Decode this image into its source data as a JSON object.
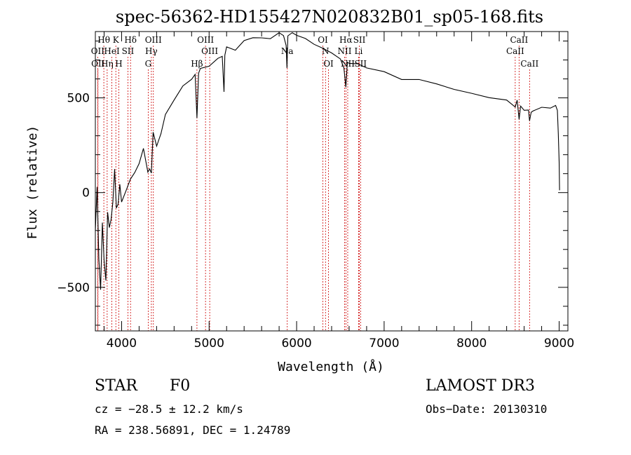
{
  "chart_data": {
    "type": "line",
    "title": "spec-56362-HD155427N020832B01_sp05-168.fits",
    "xlabel": "Wavelength (Å)",
    "ylabel": "Flux (relative)",
    "xlim": [
      3700,
      9100
    ],
    "ylim": [
      -730,
      850
    ],
    "xticks": [
      4000,
      5000,
      6000,
      7000,
      8000,
      9000
    ],
    "yticks": [
      -500,
      0,
      500
    ],
    "grid": false,
    "series": [
      {
        "name": "flux",
        "x": [
          3700,
          3720,
          3740,
          3760,
          3780,
          3800,
          3820,
          3840,
          3860,
          3880,
          3900,
          3920,
          3940,
          3960,
          3980,
          4000,
          4050,
          4100,
          4150,
          4200,
          4250,
          4300,
          4320,
          4340,
          4360,
          4400,
          4450,
          4500,
          4600,
          4700,
          4800,
          4840,
          4861,
          4880,
          4900,
          5000,
          5100,
          5150,
          5170,
          5180,
          5200,
          5300,
          5400,
          5500,
          5600,
          5700,
          5800,
          5850,
          5880,
          5890,
          5896,
          5900,
          5950,
          6000,
          6100,
          6200,
          6300,
          6400,
          6500,
          6540,
          6563,
          6580,
          6600,
          6700,
          6800,
          7000,
          7200,
          7400,
          7600,
          7800,
          8000,
          8200,
          8400,
          8498,
          8520,
          8542,
          8560,
          8600,
          8650,
          8662,
          8680,
          8700,
          8800,
          8900,
          8960,
          8980,
          8990,
          9000,
          9005
        ],
        "y": [
          -200,
          50,
          -350,
          -500,
          -150,
          -350,
          -450,
          -100,
          -200,
          -150,
          -50,
          120,
          -100,
          -60,
          40,
          -40,
          30,
          80,
          120,
          160,
          250,
          120,
          140,
          90,
          300,
          230,
          300,
          390,
          470,
          550,
          620,
          640,
          400,
          640,
          660,
          680,
          730,
          740,
          520,
          720,
          760,
          750,
          790,
          800,
          810,
          830,
          850,
          840,
          780,
          660,
          770,
          830,
          840,
          820,
          800,
          780,
          750,
          720,
          690,
          640,
          560,
          690,
          700,
          680,
          660,
          640,
          610,
          580,
          560,
          530,
          510,
          490,
          470,
          430,
          470,
          400,
          460,
          450,
          440,
          380,
          440,
          440,
          430,
          430,
          440,
          420,
          300,
          150,
          0
        ]
      }
    ],
    "spectral_lines": [
      {
        "label": "Hθ",
        "x": 3797,
        "row": 1
      },
      {
        "label": "OII",
        "x": 3727,
        "row": 2
      },
      {
        "label": "OII",
        "x": 3730,
        "row": 3
      },
      {
        "label": "K",
        "x": 3934,
        "row": 1
      },
      {
        "label": "HeI",
        "x": 3889,
        "row": 2
      },
      {
        "label": "Hη",
        "x": 3835,
        "row": 3
      },
      {
        "label": "H",
        "x": 3968,
        "row": 3
      },
      {
        "label": "Hδ",
        "x": 4102,
        "row": 1
      },
      {
        "label": "SII",
        "x": 4072,
        "row": 2
      },
      {
        "label": "OIII",
        "x": 4363,
        "row": 1
      },
      {
        "label": "Hγ",
        "x": 4340,
        "row": 2
      },
      {
        "label": "G",
        "x": 4304,
        "row": 3
      },
      {
        "label": "OIII",
        "x": 4959,
        "row": 1
      },
      {
        "label": "OIII",
        "x": 5007,
        "row": 2
      },
      {
        "label": "Hβ",
        "x": 4861,
        "row": 3
      },
      {
        "label": "Na",
        "x": 5893,
        "row": 2
      },
      {
        "label": "OI",
        "x": 6300,
        "row": 1
      },
      {
        "label": "N",
        "x": 6330,
        "row": 2
      },
      {
        "label": "OI",
        "x": 6364,
        "row": 3
      },
      {
        "label": "Hα",
        "x": 6563,
        "row": 1
      },
      {
        "label": "SII",
        "x": 6717,
        "row": 1
      },
      {
        "label": "NII",
        "x": 6548,
        "row": 2
      },
      {
        "label": "Li",
        "x": 6708,
        "row": 2
      },
      {
        "label": "NII",
        "x": 6584,
        "row": 3
      },
      {
        "label": "SII",
        "x": 6731,
        "row": 3
      },
      {
        "label": "CaII",
        "x": 8542,
        "row": 1
      },
      {
        "label": "CaII",
        "x": 8498,
        "row": 2
      },
      {
        "label": "CaII",
        "x": 8662,
        "row": 3
      }
    ]
  },
  "info": {
    "object_class": "STAR",
    "subclass": "F0",
    "survey": "LAMOST DR3",
    "redshift": "cz = −28.5 ± 12.2 km/s",
    "obs_date": "Obs−Date: 20130310",
    "coords": "RA = 238.56891, DEC =   1.24789"
  },
  "colors": {
    "line_marker": "#cc0000",
    "spectrum": "#000000"
  }
}
